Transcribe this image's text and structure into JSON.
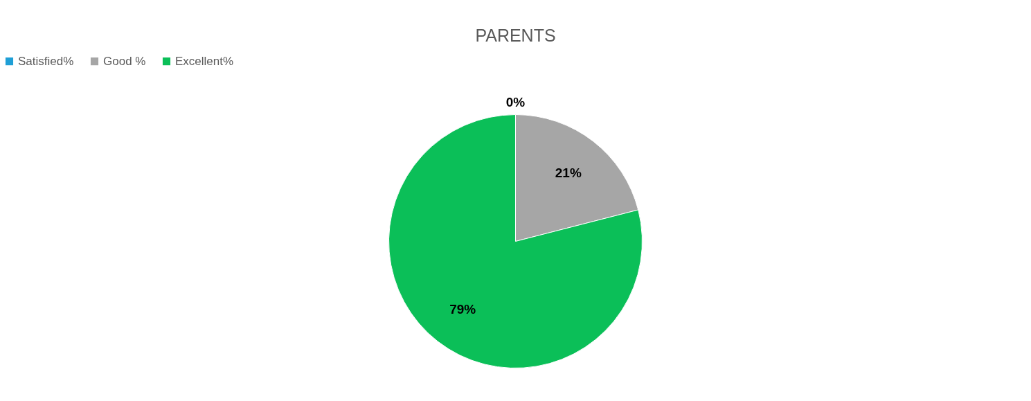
{
  "chart_data": {
    "type": "pie",
    "title": "PARENTS",
    "categories": [
      "Satisfied%",
      "Good %",
      "Excellent%"
    ],
    "values": [
      0,
      21,
      79
    ],
    "colors": [
      "#1f9fd6",
      "#a6a6a6",
      "#0bbf58"
    ],
    "value_labels": [
      "0%",
      "21%",
      "79%"
    ],
    "legend": "top"
  }
}
